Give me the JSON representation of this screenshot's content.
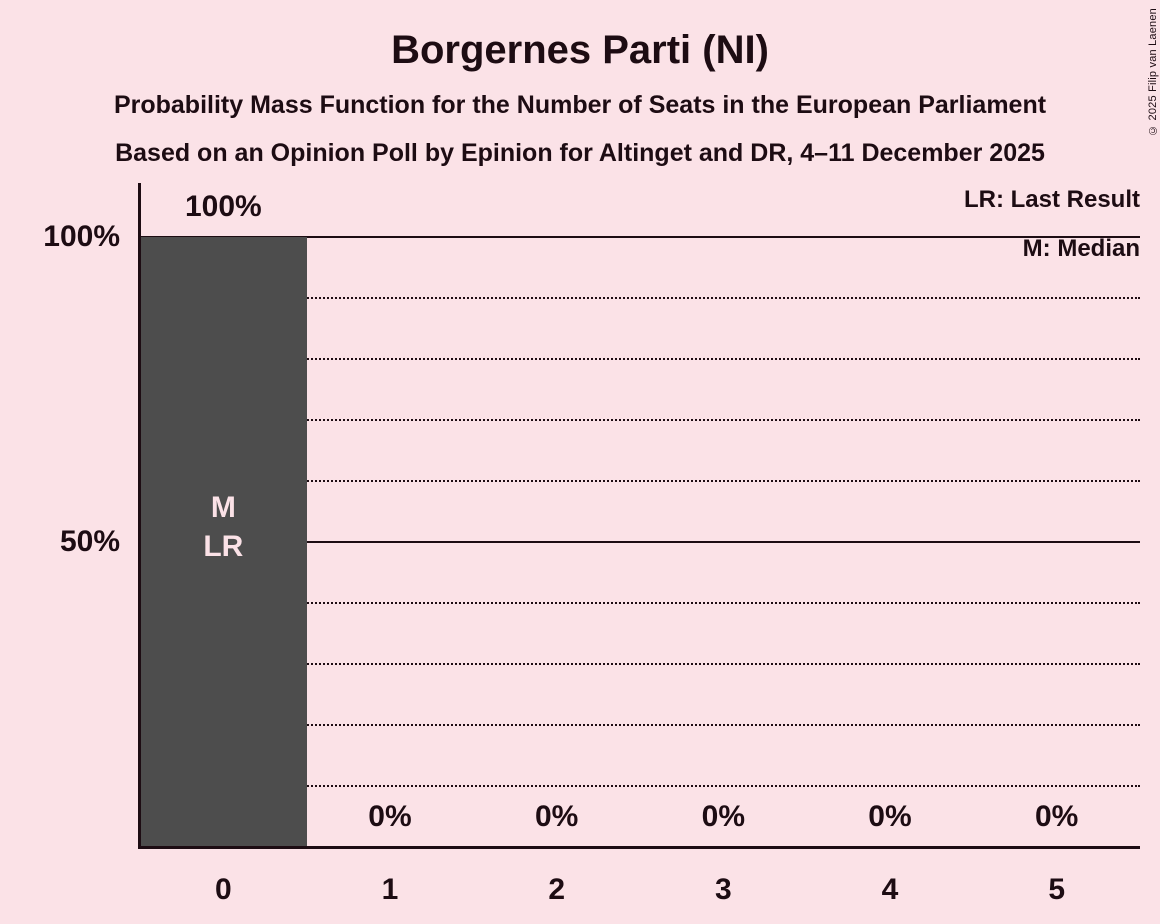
{
  "title": "Borgernes Parti (NI)",
  "subtitles": [
    "Probability Mass Function for the Number of Seats in the European Parliament",
    "Based on an Opinion Poll by Epinion for Altinget and DR, 4–11 December 2025"
  ],
  "copyright": "© 2025 Filip van Laenen",
  "legend": {
    "last_result": "LR: Last Result",
    "median": "M: Median"
  },
  "colors": {
    "background": "#FBE2E7",
    "bar": "#4D4D4D",
    "text": "#1D0C13",
    "grid": "#1D0C13",
    "bar_label": "#FBE2E7"
  },
  "chart_data": {
    "type": "bar",
    "title": "Borgernes Parti (NI)",
    "categories": [
      "0",
      "1",
      "2",
      "3",
      "4",
      "5"
    ],
    "values": [
      100,
      0,
      0,
      0,
      0,
      0
    ],
    "value_labels": [
      "100%",
      "0%",
      "0%",
      "0%",
      "0%",
      "0%"
    ],
    "bar_annotations": [
      [
        "M",
        "LR"
      ],
      [],
      [],
      [],
      [],
      []
    ],
    "annotation_meanings": {
      "M": "Median",
      "LR": "Last Result"
    },
    "xlabel": "",
    "ylabel": "",
    "ylim": [
      0,
      100
    ],
    "y_tick_values": [
      100,
      50
    ],
    "y_tick_labels": [
      "100%",
      "50%"
    ],
    "gridlines_solid": [
      100,
      50
    ],
    "gridlines_dotted": [
      90,
      80,
      70,
      60,
      40,
      30,
      20,
      10
    ],
    "grid": true,
    "legend_position": "top-right"
  }
}
